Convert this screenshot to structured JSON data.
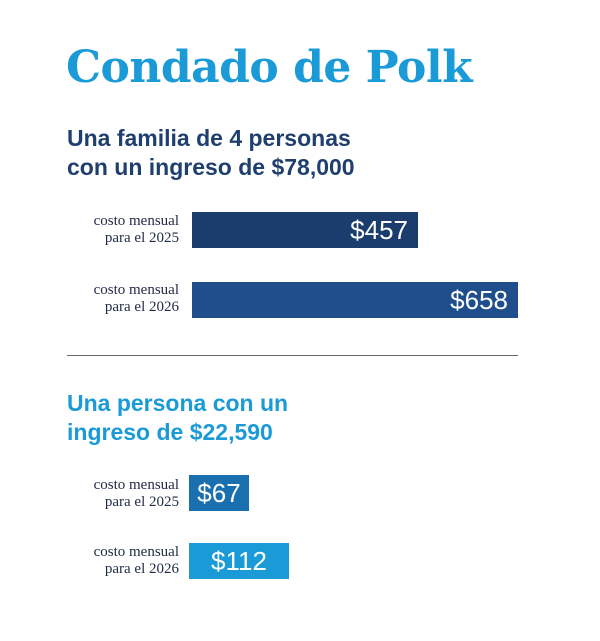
{
  "title": "Condado de Polk",
  "colors": {
    "title": "#1a9ad6",
    "family_heading": "#1f3f6e",
    "single_heading": "#1a9ad6",
    "family_2025": "#1b3d6e",
    "family_2026": "#1e4f8c",
    "single_2025": "#1a6fae",
    "single_2026": "#1a9ad6"
  },
  "chart_data": [
    {
      "type": "bar",
      "orientation": "horizontal",
      "title": "Una familia de 4 personas\ncon un ingreso de $78,000",
      "categories": [
        "costo mensual\npara el 2025",
        "costo mensual\npara el 2026"
      ],
      "values": [
        457,
        658
      ],
      "data_labels": [
        "$457",
        "$658"
      ]
    },
    {
      "type": "bar",
      "orientation": "horizontal",
      "title": "Una persona con un\ningreso de $22,590",
      "categories": [
        "costo mensual\npara el 2025",
        "costo mensual\npara el 2026"
      ],
      "values": [
        67,
        112
      ],
      "data_labels": [
        "$67",
        "$112"
      ]
    }
  ]
}
